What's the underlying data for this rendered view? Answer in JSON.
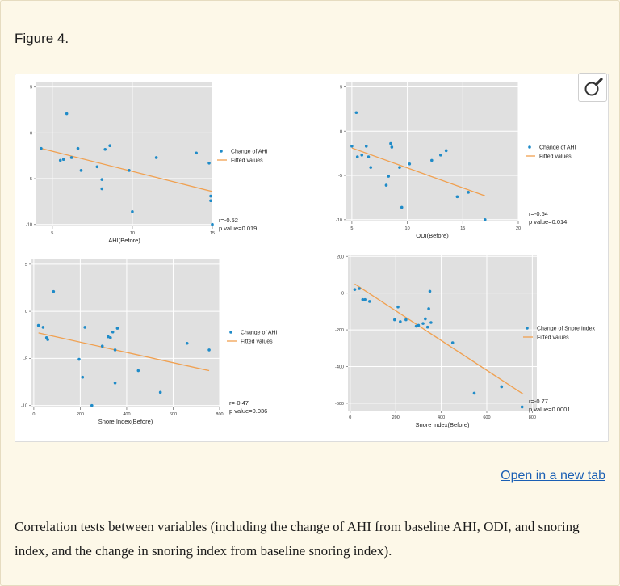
{
  "figure_label": "Figure 4.",
  "open_link": "Open in a new tab",
  "caption": "Correlation tests between variables (including the change of AHI from baseline AHI, ODI, and snoring index, and the change in snoring index from baseline snoring index).",
  "zoom_icon": "magnifier-icon",
  "colors": {
    "point": "#1f8bc8",
    "fit": "#f0a050",
    "panel": "#e0e0e0",
    "grid": "#ffffff"
  },
  "chart_data": [
    {
      "type": "scatter",
      "xlabel": "AHI(Before)",
      "ylabel": "Change of AHI",
      "xlim": [
        4,
        15
      ],
      "ylim": [
        -10.2,
        5.5
      ],
      "xticks": [
        5,
        10,
        15
      ],
      "yticks": [
        5,
        0,
        -5,
        -10
      ],
      "legend": [
        "Change of AHI",
        "Fitted values"
      ],
      "stat_r": "r=-0.52",
      "stat_p": "p value=0.019",
      "points": [
        [
          4.3,
          -1.7
        ],
        [
          5.5,
          -3
        ],
        [
          5.7,
          -2.9
        ],
        [
          5.9,
          2.1
        ],
        [
          6.2,
          -2.7
        ],
        [
          6.6,
          -1.7
        ],
        [
          6.8,
          -4.1
        ],
        [
          7.8,
          -3.7
        ],
        [
          8.1,
          -6.1
        ],
        [
          8.1,
          -5.1
        ],
        [
          8.3,
          -1.8
        ],
        [
          8.6,
          -1.4
        ],
        [
          9.8,
          -4.1
        ],
        [
          10,
          -8.6
        ],
        [
          11.5,
          -2.7
        ],
        [
          14,
          -2.2
        ],
        [
          14.8,
          -3.3
        ],
        [
          14.9,
          -6.9
        ],
        [
          14.9,
          -7.4
        ],
        [
          15,
          -10
        ]
      ],
      "fit": [
        [
          4.3,
          -1.7
        ],
        [
          15,
          -6.4
        ]
      ]
    },
    {
      "type": "scatter",
      "xlabel": "ODI(Before)",
      "ylabel": "Change of AHI",
      "xlim": [
        4.5,
        20
      ],
      "ylim": [
        -10.2,
        5.5
      ],
      "xticks": [
        5,
        10,
        15,
        20
      ],
      "yticks": [
        5,
        0,
        -5,
        -10
      ],
      "legend": [
        "Change of AHI",
        "Fitted values"
      ],
      "stat_r": "r=-0.54",
      "stat_p": "p value=0.014",
      "points": [
        [
          5,
          -1.7
        ],
        [
          5.4,
          2.1
        ],
        [
          5.5,
          -2.9
        ],
        [
          5.9,
          -2.7
        ],
        [
          6.3,
          -1.7
        ],
        [
          6.5,
          -2.9
        ],
        [
          6.7,
          -4.1
        ],
        [
          8.1,
          -6.1
        ],
        [
          8.3,
          -5.1
        ],
        [
          8.5,
          -1.4
        ],
        [
          8.6,
          -1.8
        ],
        [
          9.3,
          -4.1
        ],
        [
          9.5,
          -8.6
        ],
        [
          10.2,
          -3.7
        ],
        [
          12.2,
          -3.3
        ],
        [
          13,
          -2.7
        ],
        [
          13.5,
          -2.2
        ],
        [
          14.5,
          -7.4
        ],
        [
          15.5,
          -6.9
        ],
        [
          17,
          -10
        ]
      ],
      "fit": [
        [
          5,
          -1.9
        ],
        [
          17,
          -7.3
        ]
      ]
    },
    {
      "type": "scatter",
      "xlabel": "Snore Index(Before)",
      "ylabel": "Change of AHI",
      "xlim": [
        -10,
        800
      ],
      "ylim": [
        -10.2,
        5.5
      ],
      "xticks": [
        0,
        200,
        400,
        600,
        800
      ],
      "yticks": [
        5,
        0,
        -5,
        -10
      ],
      "legend": [
        "Change of AHI",
        "Fitted values"
      ],
      "stat_r": "r=-0.47",
      "stat_p": "p value=0.036",
      "points": [
        [
          20,
          -1.5
        ],
        [
          40,
          -1.7
        ],
        [
          55,
          -2.8
        ],
        [
          60,
          -3
        ],
        [
          85,
          2.1
        ],
        [
          195,
          -5.1
        ],
        [
          210,
          -7
        ],
        [
          220,
          -1.7
        ],
        [
          250,
          -10
        ],
        [
          295,
          -3.7
        ],
        [
          320,
          -2.7
        ],
        [
          330,
          -2.8
        ],
        [
          340,
          -2.2
        ],
        [
          350,
          -4.1
        ],
        [
          350,
          -7.6
        ],
        [
          360,
          -1.8
        ],
        [
          450,
          -6.3
        ],
        [
          545,
          -8.6
        ],
        [
          660,
          -3.4
        ],
        [
          755,
          -4.1
        ]
      ],
      "fit": [
        [
          20,
          -2.3
        ],
        [
          755,
          -6.3
        ]
      ]
    },
    {
      "type": "scatter",
      "xlabel": "Snore index(Before)",
      "ylabel": "Change of Snore Index",
      "xlim": [
        -10,
        820
      ],
      "ylim": [
        -640,
        210
      ],
      "xticks": [
        0,
        200,
        400,
        600,
        800
      ],
      "yticks": [
        200,
        0,
        -200,
        -400,
        -600
      ],
      "legend": [
        "Change of Snore Index",
        "Fitted values"
      ],
      "stat_r": "r=-0.77",
      "stat_p": "p value=0.0001",
      "points": [
        [
          20,
          20
        ],
        [
          40,
          25
        ],
        [
          55,
          -35
        ],
        [
          65,
          -35
        ],
        [
          85,
          -45
        ],
        [
          195,
          -145
        ],
        [
          210,
          -75
        ],
        [
          220,
          -155
        ],
        [
          245,
          -145
        ],
        [
          290,
          -180
        ],
        [
          300,
          -175
        ],
        [
          320,
          -165
        ],
        [
          330,
          -140
        ],
        [
          340,
          -185
        ],
        [
          345,
          -85
        ],
        [
          350,
          10
        ],
        [
          355,
          -160
        ],
        [
          450,
          -270
        ],
        [
          545,
          -545
        ],
        [
          665,
          -510
        ],
        [
          755,
          -620
        ]
      ],
      "fit": [
        [
          20,
          50
        ],
        [
          760,
          -550
        ]
      ]
    }
  ]
}
